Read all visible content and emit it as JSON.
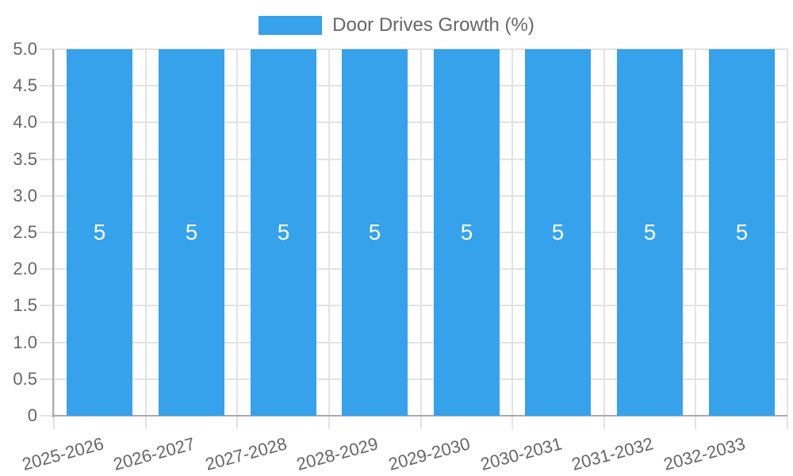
{
  "chart_data": {
    "type": "bar",
    "title": "",
    "legend": {
      "position": "top",
      "label": "Door Drives Growth (%)"
    },
    "categories": [
      "2025-2026",
      "2026-2027",
      "2027-2028",
      "2028-2029",
      "2029-2030",
      "2030-2031",
      "2031-2032",
      "2032-2033"
    ],
    "series": [
      {
        "name": "Door Drives Growth (%)",
        "values": [
          5,
          5,
          5,
          5,
          5,
          5,
          5,
          5
        ]
      }
    ],
    "bar_value_labels": [
      "5",
      "5",
      "5",
      "5",
      "5",
      "5",
      "5",
      "5"
    ],
    "xlabel": "",
    "ylabel": "",
    "ylim": [
      0,
      5
    ],
    "ytick_step": 0.5,
    "ytick_labels": [
      "0",
      "0.5",
      "1.0",
      "1.5",
      "2.0",
      "2.5",
      "3.0",
      "3.5",
      "4.0",
      "4.5",
      "5.0"
    ],
    "grid": true,
    "colors": {
      "bar": "#36A2EB",
      "bar_label": "#ffffff",
      "grid": "#e3e3e3",
      "axis_border": "#ababab",
      "text": "#666666",
      "background": "#ffffff"
    }
  }
}
